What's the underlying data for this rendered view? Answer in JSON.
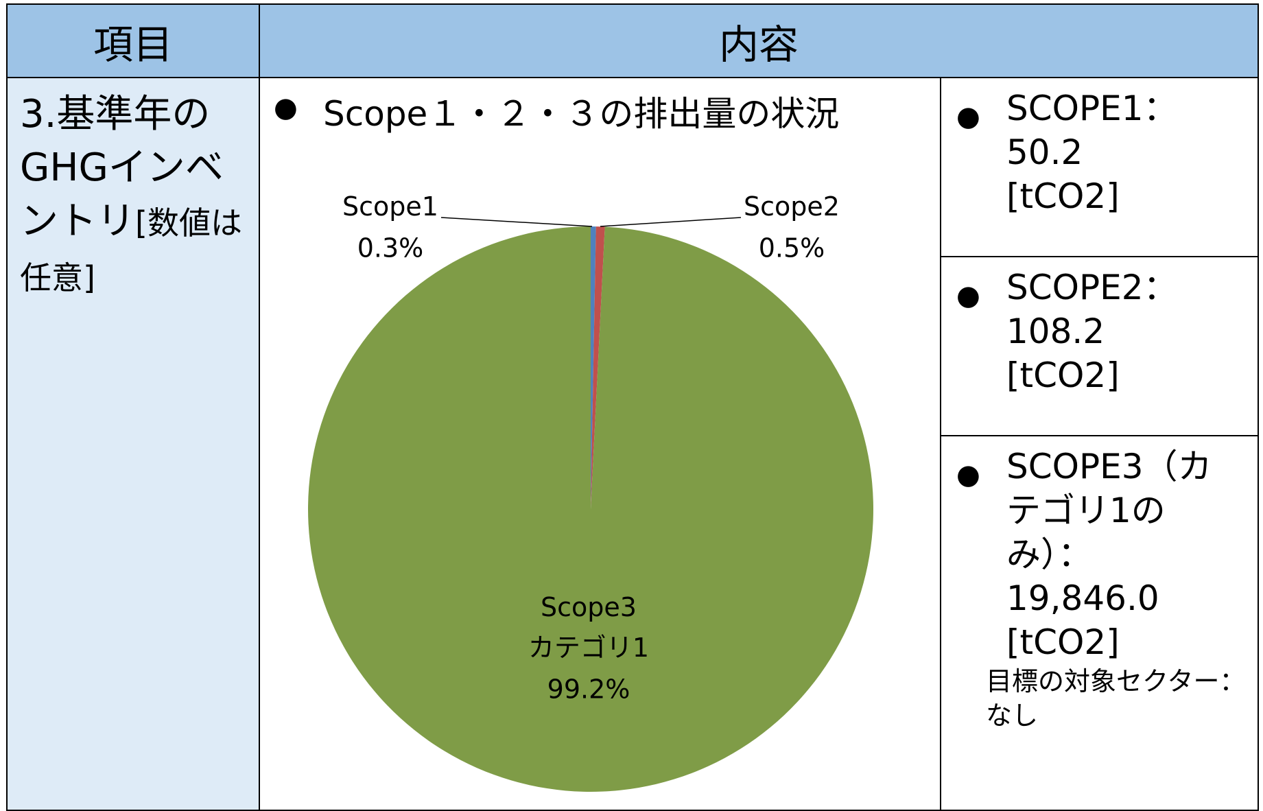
{
  "table": {
    "header": [
      "項目",
      "内容"
    ],
    "item": {
      "title": "3.基準年のGHGインベントリ",
      "note": "[数値は任意]"
    },
    "heading": "Scope１・２・３の排出量の状況",
    "side": [
      {
        "label": "SCOPE1：",
        "value": "50.2",
        "unit": "[tCO2]"
      },
      {
        "label": "SCOPE2：",
        "value": "108.2",
        "unit": "[tCO2]"
      },
      {
        "label": "SCOPE3（カテゴリ1のみ）：",
        "value": "19,846.0",
        "unit": "[tCO2]",
        "note": "目標の対象セクター：なし"
      }
    ]
  },
  "chart_data": {
    "type": "pie",
    "categories": [
      "Scope1",
      "Scope2",
      "Scope3\nカテゴリ1"
    ],
    "values": [
      0.3,
      0.5,
      99.2
    ],
    "value_labels": [
      "0.3%",
      "0.5%",
      "99.2%"
    ],
    "colors": [
      "#4f81bd",
      "#c0504d",
      "#7f9c47"
    ]
  }
}
